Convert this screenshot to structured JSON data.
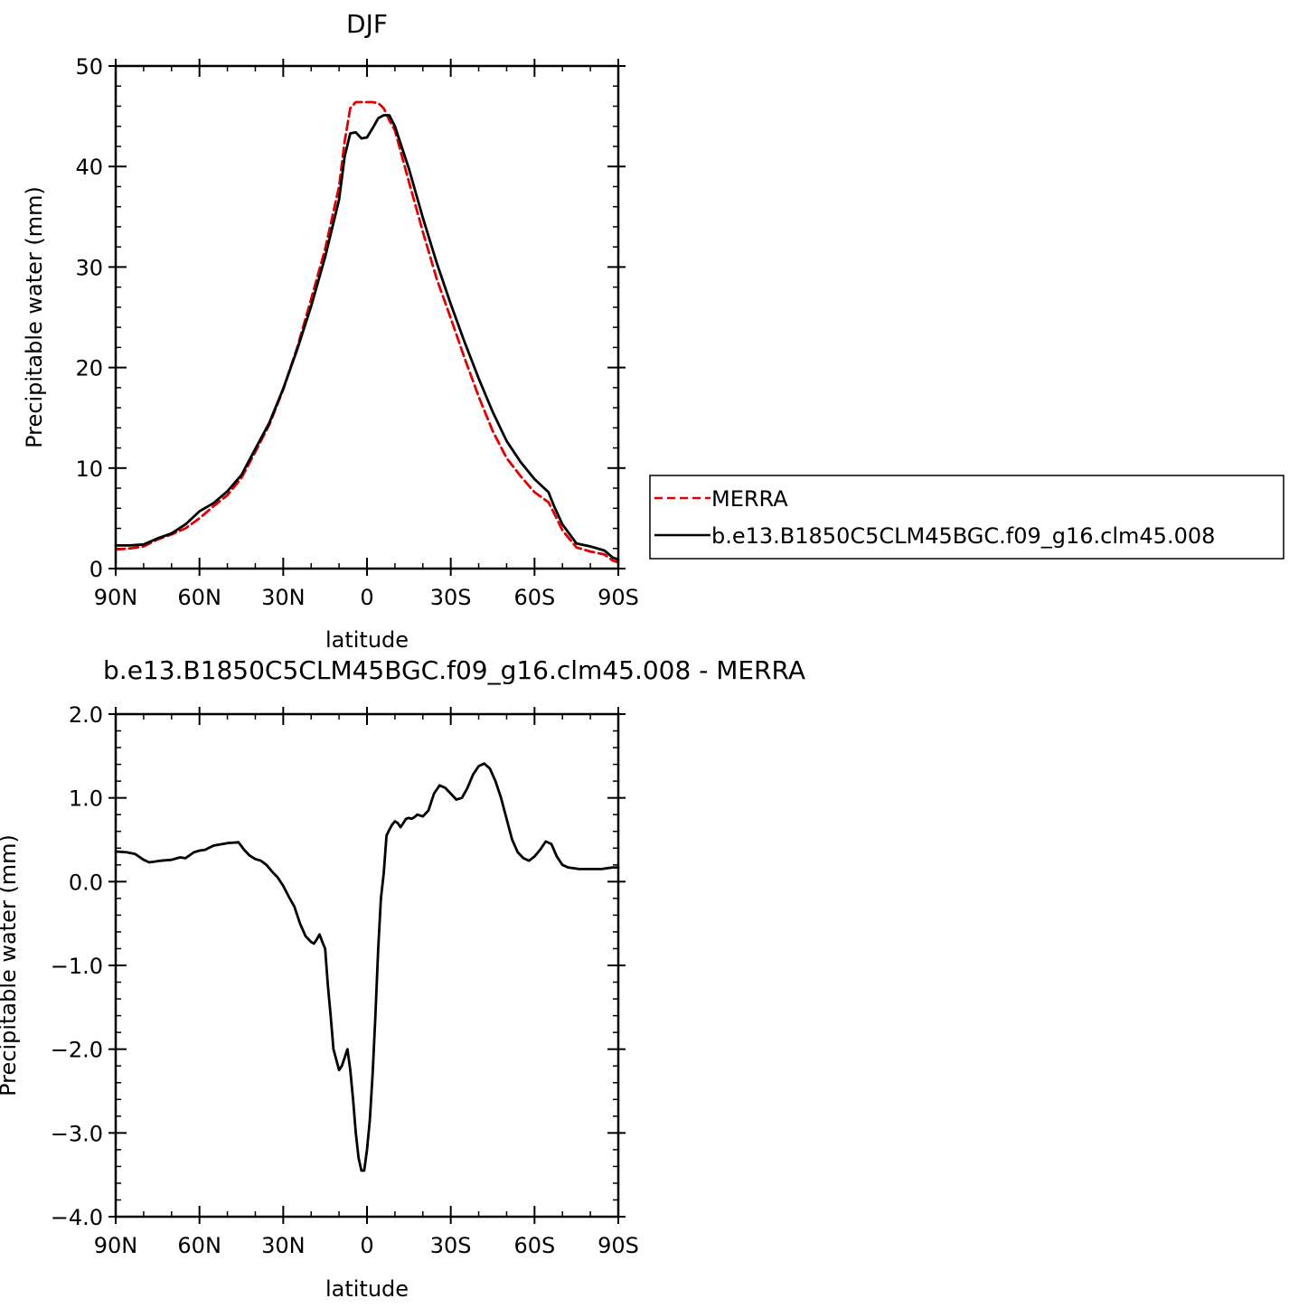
{
  "chart_data": [
    {
      "type": "line",
      "title": "DJF",
      "xlabel": "latitude",
      "ylabel": "Precipitable water (mm)",
      "xlim": [
        90,
        -90
      ],
      "ylim": [
        0,
        50
      ],
      "x_ticks": [
        90,
        60,
        30,
        0,
        -30,
        -60,
        -90
      ],
      "x_tick_labels": [
        "90N",
        "60N",
        "30N",
        "0",
        "30S",
        "60S",
        "90S"
      ],
      "y_ticks": [
        0,
        10,
        20,
        30,
        40,
        50
      ],
      "y_tick_labels": [
        "0",
        "10",
        "20",
        "30",
        "40",
        "50"
      ],
      "legend_position": "right, outside plot",
      "series": [
        {
          "name": "MERRA",
          "color": "#e00000",
          "style": "dashed",
          "x": [
            90,
            85,
            80,
            75,
            70,
            65,
            60,
            55,
            50,
            45,
            40,
            35,
            30,
            25,
            20,
            15,
            10,
            8,
            6,
            4,
            2,
            0,
            -2,
            -4,
            -6,
            -8,
            -10,
            -15,
            -20,
            -25,
            -30,
            -35,
            -40,
            -45,
            -50,
            -55,
            -60,
            -65,
            -67,
            -70,
            -75,
            -80,
            -85,
            -88,
            -90
          ],
          "y": [
            1.9,
            2.0,
            2.2,
            2.9,
            3.4,
            4.0,
            5.0,
            6.2,
            7.3,
            9.0,
            11.6,
            14.3,
            17.8,
            22.0,
            26.8,
            31.8,
            38.0,
            42.5,
            45.8,
            46.4,
            46.4,
            46.4,
            46.4,
            46.3,
            45.8,
            44.6,
            43.6,
            38.5,
            33.5,
            28.8,
            24.9,
            20.9,
            17.1,
            13.7,
            11.0,
            9.2,
            7.6,
            6.6,
            5.5,
            3.8,
            2.1,
            1.7,
            1.4,
            0.8,
            0.6
          ]
        },
        {
          "name": "b.e13.B1850C5CLM45BGC.f09_g16.clm45.008",
          "color": "#000000",
          "style": "solid",
          "x": [
            90,
            85,
            80,
            75,
            70,
            65,
            60,
            55,
            50,
            45,
            40,
            35,
            30,
            25,
            20,
            15,
            10,
            8,
            6,
            4,
            2,
            0,
            -2,
            -4,
            -6,
            -8,
            -10,
            -15,
            -20,
            -25,
            -30,
            -35,
            -40,
            -45,
            -50,
            -55,
            -60,
            -65,
            -67,
            -70,
            -75,
            -80,
            -85,
            -88,
            -90
          ],
          "y": [
            2.3,
            2.3,
            2.4,
            3.0,
            3.5,
            4.4,
            5.7,
            6.5,
            7.7,
            9.3,
            11.9,
            14.5,
            17.9,
            21.8,
            26.1,
            31.0,
            36.7,
            41.0,
            43.3,
            43.4,
            42.8,
            42.9,
            43.8,
            44.8,
            45.1,
            45.1,
            44.0,
            39.8,
            34.9,
            30.4,
            26.3,
            22.5,
            18.9,
            15.6,
            12.7,
            10.6,
            8.9,
            7.6,
            6.2,
            4.4,
            2.5,
            2.2,
            1.8,
            1.1,
            0.9
          ]
        }
      ]
    },
    {
      "type": "line",
      "title": "b.e13.B1850C5CLM45BGC.f09_g16.clm45.008 - MERRA",
      "xlabel": "latitude",
      "ylabel": "Precipitable water (mm)",
      "xlim": [
        90,
        -90
      ],
      "ylim": [
        -4.0,
        2.0
      ],
      "x_ticks": [
        90,
        60,
        30,
        0,
        -30,
        -60,
        -90
      ],
      "x_tick_labels": [
        "90N",
        "60N",
        "30N",
        "0",
        "30S",
        "60S",
        "90S"
      ],
      "y_ticks": [
        -4.0,
        -3.0,
        -2.0,
        -1.0,
        0.0,
        1.0,
        2.0
      ],
      "y_tick_labels": [
        "−4.0",
        "−3.0",
        "−2.0",
        "−1.0",
        "0.0",
        "1.0",
        "2.0"
      ],
      "series": [
        {
          "color": "#000000",
          "style": "solid",
          "x": [
            90,
            86,
            83,
            80,
            78,
            74,
            70,
            67,
            65,
            62,
            60,
            58,
            55,
            50,
            46,
            44,
            42,
            40,
            38,
            36,
            34,
            32,
            30,
            28,
            26,
            24,
            22,
            20,
            19,
            18,
            17,
            16,
            15,
            14,
            13,
            12,
            10,
            9,
            8,
            7,
            6,
            5,
            4,
            3,
            2,
            1,
            0,
            -1,
            -2,
            -3,
            -4,
            -5,
            -6,
            -7,
            -8,
            -9,
            -10,
            -11,
            -12,
            -13,
            -14,
            -15,
            -16,
            -17,
            -18,
            -20,
            -22,
            -24,
            -26,
            -28,
            -30,
            -32,
            -34,
            -36,
            -38,
            -40,
            -42,
            -44,
            -46,
            -48,
            -50,
            -52,
            -54,
            -56,
            -58,
            -60,
            -62,
            -64,
            -66,
            -68,
            -70,
            -72,
            -74,
            -76,
            -78,
            -80,
            -82,
            -84,
            -86,
            -88,
            -90
          ],
          "y": [
            0.36,
            0.35,
            0.33,
            0.26,
            0.23,
            0.25,
            0.26,
            0.29,
            0.28,
            0.35,
            0.37,
            0.38,
            0.43,
            0.46,
            0.47,
            0.38,
            0.31,
            0.27,
            0.25,
            0.2,
            0.12,
            0.05,
            -0.05,
            -0.18,
            -0.3,
            -0.5,
            -0.65,
            -0.72,
            -0.74,
            -0.69,
            -0.63,
            -0.72,
            -0.8,
            -1.25,
            -1.6,
            -2.0,
            -2.25,
            -2.2,
            -2.1,
            -2.0,
            -2.25,
            -2.6,
            -3.0,
            -3.3,
            -3.45,
            -3.45,
            -3.2,
            -2.85,
            -2.3,
            -1.6,
            -0.8,
            -0.2,
            0.1,
            0.55,
            0.62,
            0.68,
            0.72,
            0.7,
            0.65,
            0.7,
            0.75,
            0.76,
            0.75,
            0.77,
            0.8,
            0.78,
            0.85,
            1.05,
            1.15,
            1.12,
            1.05,
            0.98,
            1.0,
            1.12,
            1.28,
            1.38,
            1.41,
            1.35,
            1.2,
            1.0,
            0.75,
            0.5,
            0.35,
            0.28,
            0.25,
            0.3,
            0.38,
            0.48,
            0.45,
            0.3,
            0.2,
            0.17,
            0.16,
            0.15,
            0.15,
            0.15,
            0.15,
            0.15,
            0.16,
            0.17,
            0.17
          ]
        }
      ]
    }
  ]
}
